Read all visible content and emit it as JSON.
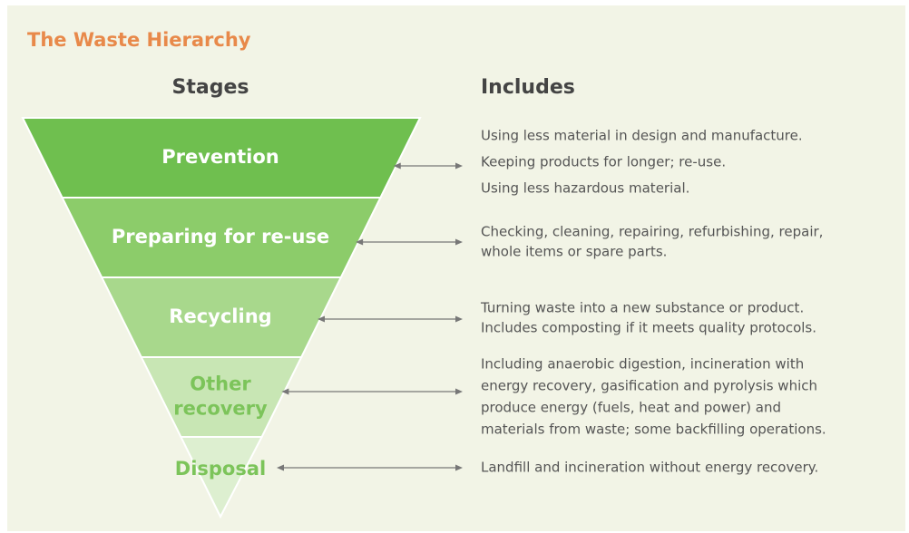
{
  "title": "The Waste Hierarchy",
  "headers": {
    "stages": "Stages",
    "includes": "Includes"
  },
  "stages": [
    {
      "label_lines": [
        "Prevention"
      ],
      "description_lines": [
        "Using less material in design and manufacture.",
        "Keeping products for longer; re-use.",
        "Using less hazardous material."
      ]
    },
    {
      "label_lines": [
        "Preparing for re-use"
      ],
      "description_lines": [
        "Checking, cleaning, repairing, refurbishing, repair,",
        "whole items or spare parts."
      ]
    },
    {
      "label_lines": [
        "Recycling"
      ],
      "description_lines": [
        "Turning waste into a new substance or product.",
        "Includes composting if it meets quality protocols."
      ]
    },
    {
      "label_lines": [
        "Other",
        "recovery"
      ],
      "description_lines": [
        "Including anaerobic digestion, incineration with",
        "energy recovery, gasification and pyrolysis which",
        "produce energy (fuels, heat and power) and",
        "materials from waste; some backfilling operations."
      ]
    },
    {
      "label_lines": [
        "Disposal"
      ],
      "description_lines": [
        "Landfill and incineration without energy recovery."
      ]
    }
  ]
}
